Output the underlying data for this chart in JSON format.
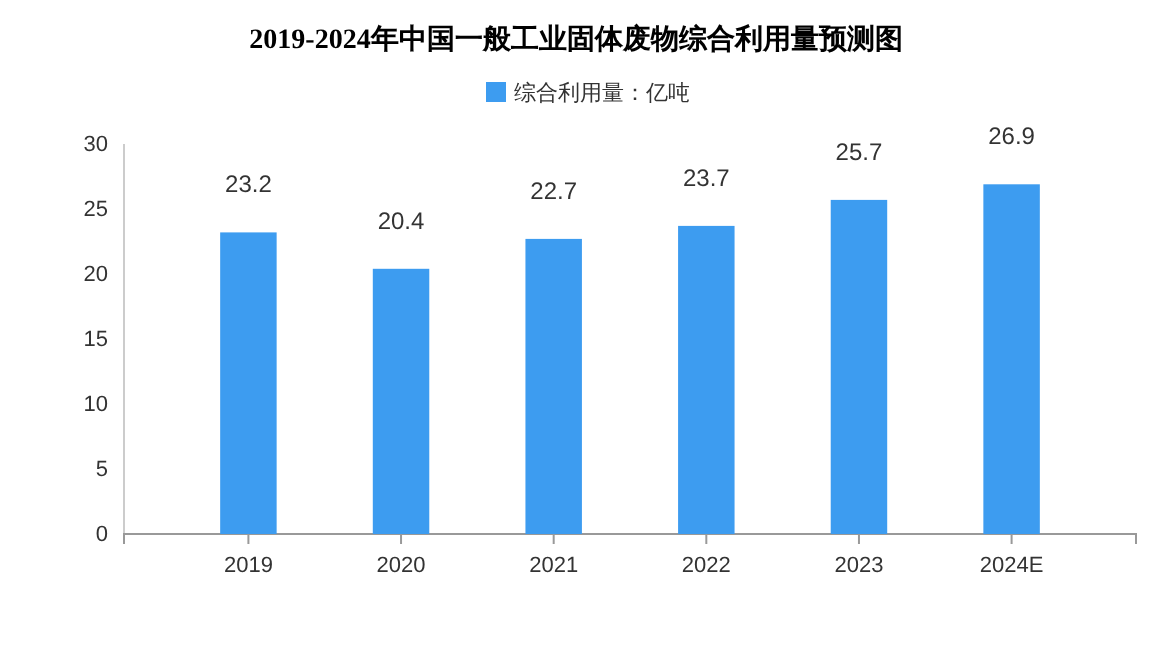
{
  "chart_data": {
    "type": "bar",
    "title": "2019-2024年中国一般工业固体废物综合利用量预测图",
    "categories": [
      "2019",
      "2020",
      "2021",
      "2022",
      "2023",
      "2024E"
    ],
    "series": [
      {
        "name": "综合利用量：亿吨",
        "color": "#3d9cf0",
        "values": [
          23.2,
          20.4,
          22.7,
          23.7,
          25.7,
          26.9
        ]
      }
    ],
    "ylim": [
      0,
      30
    ],
    "yticks": [
      0,
      5,
      10,
      15,
      20,
      25,
      30
    ],
    "grid": false,
    "legend": "top",
    "data_labels": true
  }
}
